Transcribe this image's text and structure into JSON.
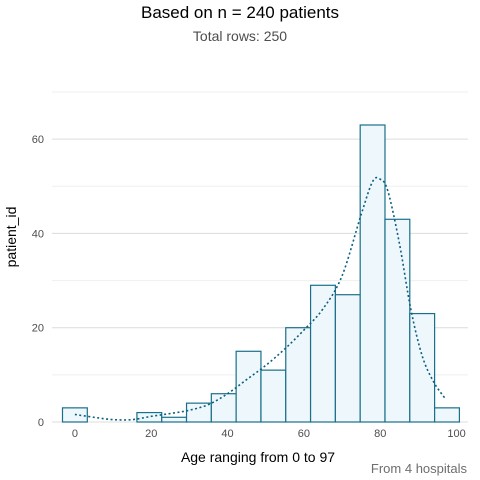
{
  "header": {
    "title": "Based on n = 240 patients",
    "subtitle": "Total rows: 250",
    "caption": "From 4 hospitals"
  },
  "chart_data": {
    "type": "bar",
    "subtype": "histogram",
    "xlabel": "Age ranging from 0 to 97",
    "ylabel": "patient_id",
    "xlim": [
      -6,
      103
    ],
    "ylim": [
      0,
      70
    ],
    "x_ticks": [
      0,
      20,
      40,
      60,
      80,
      100
    ],
    "y_ticks": [
      0,
      20,
      40,
      60
    ],
    "grid": true,
    "bin_width": 6.5,
    "bins": [
      {
        "x0": -3.25,
        "x1": 3.25,
        "count": 3
      },
      {
        "x0": 3.25,
        "x1": 9.75,
        "count": 0
      },
      {
        "x0": 9.75,
        "x1": 16.25,
        "count": 0
      },
      {
        "x0": 16.25,
        "x1": 22.75,
        "count": 2
      },
      {
        "x0": 22.75,
        "x1": 29.25,
        "count": 1
      },
      {
        "x0": 29.25,
        "x1": 35.75,
        "count": 4
      },
      {
        "x0": 35.75,
        "x1": 42.25,
        "count": 6
      },
      {
        "x0": 42.25,
        "x1": 48.75,
        "count": 15
      },
      {
        "x0": 48.75,
        "x1": 55.25,
        "count": 11
      },
      {
        "x0": 55.25,
        "x1": 61.75,
        "count": 20
      },
      {
        "x0": 61.75,
        "x1": 68.25,
        "count": 29
      },
      {
        "x0": 68.25,
        "x1": 74.75,
        "count": 27
      },
      {
        "x0": 74.75,
        "x1": 81.25,
        "count": 63
      },
      {
        "x0": 81.25,
        "x1": 87.75,
        "count": 43
      },
      {
        "x0": 87.75,
        "x1": 94.25,
        "count": 23
      },
      {
        "x0": 94.25,
        "x1": 100.75,
        "count": 3
      }
    ],
    "density_curve": [
      [
        0,
        1.6
      ],
      [
        5,
        1.0
      ],
      [
        10,
        0.5
      ],
      [
        15,
        0.5
      ],
      [
        20,
        1.2
      ],
      [
        25,
        1.8
      ],
      [
        30,
        2.5
      ],
      [
        35,
        3.7
      ],
      [
        40,
        6.0
      ],
      [
        45,
        9.0
      ],
      [
        50,
        12.0
      ],
      [
        55,
        15.5
      ],
      [
        60,
        19.5
      ],
      [
        65,
        24.0
      ],
      [
        70,
        31.0
      ],
      [
        75,
        44.0
      ],
      [
        78,
        51.0
      ],
      [
        80,
        51.5
      ],
      [
        82,
        49.0
      ],
      [
        85,
        38.0
      ],
      [
        88,
        24.0
      ],
      [
        91,
        14.0
      ],
      [
        94,
        8.5
      ],
      [
        97,
        5.0
      ]
    ],
    "colors": {
      "bar_fill": "#eef7fb",
      "bar_stroke": "#1a6f8a",
      "curve": "#0b5f82",
      "grid_major": "#dcdcdc",
      "grid_minor": "#efefef"
    }
  }
}
